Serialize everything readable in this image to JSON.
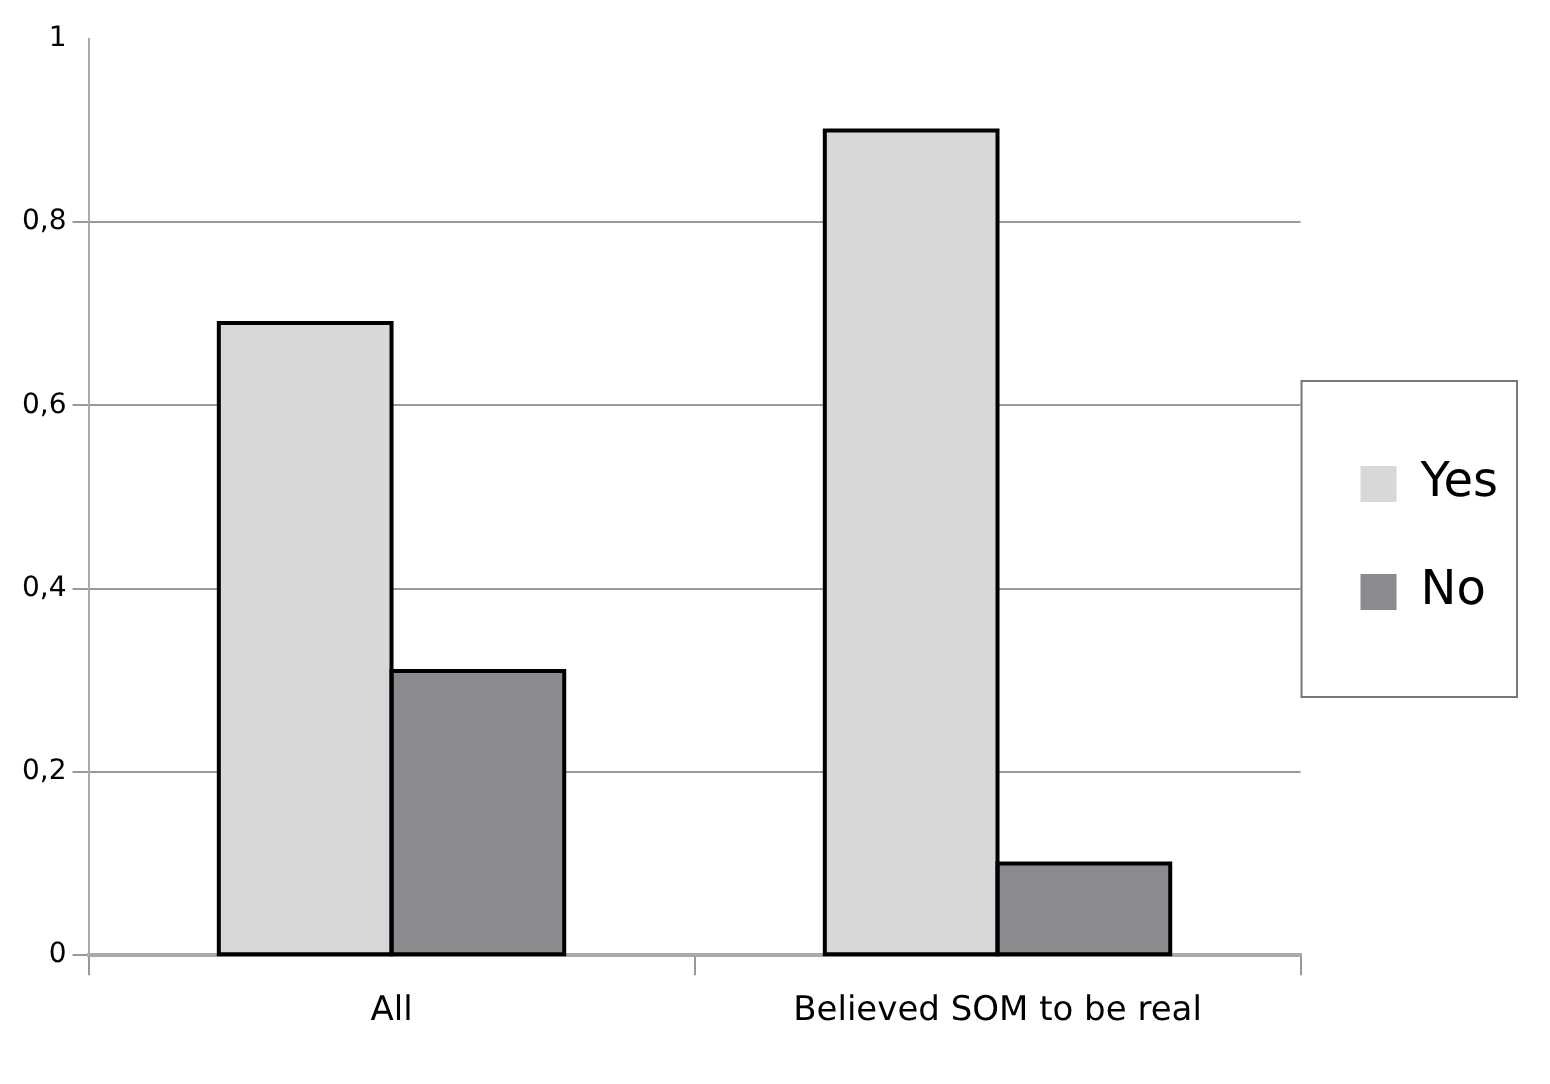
{
  "chart_data": {
    "type": "bar",
    "categories": [
      "All",
      "Believed SOM to be real"
    ],
    "series": [
      {
        "name": "Yes",
        "color": "#d7d8da",
        "values": [
          0.69,
          0.9
        ]
      },
      {
        "name": "No",
        "color": "#8a8b8f",
        "values": [
          0.31,
          0.1
        ]
      }
    ],
    "ylim": [
      0,
      1
    ],
    "yticks": [
      0,
      {
        "value": 0.2,
        "label": "0,2"
      },
      {
        "value": 0.4,
        "label": "0,4"
      },
      {
        "value": 0.6,
        "label": "0,6"
      },
      {
        "value": 0.8,
        "label": "0,8"
      },
      1
    ],
    "grid": "y",
    "legend": "right"
  }
}
